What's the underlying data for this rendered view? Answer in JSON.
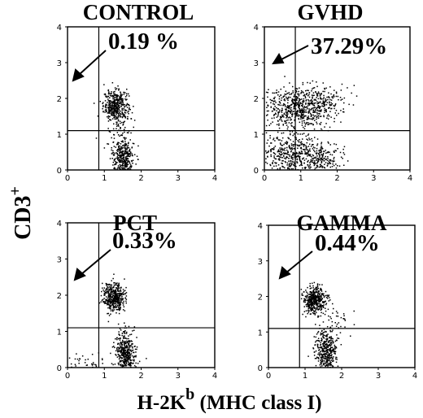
{
  "figure": {
    "ylabel": "CD3",
    "ylabel_sup": "+",
    "xlabel_main": "H-2K",
    "xlabel_sup": "b",
    "xlabel_rest": " (MHC class I)"
  },
  "chart_data": [
    {
      "type": "scatter",
      "title": "CONTROL",
      "annotation": "0.19 %",
      "xlim": [
        0,
        4
      ],
      "ylim": [
        0,
        4
      ],
      "xticks": [
        "0",
        "1",
        "2",
        "3",
        "4"
      ],
      "yticks": [
        "0",
        "1",
        "2",
        "3",
        "4"
      ],
      "gates": {
        "x": 0.85,
        "y": 1.1
      },
      "clusters": [
        {
          "cx": 1.3,
          "cy": 1.8,
          "sx": 0.17,
          "sy": 0.22,
          "n": 420
        },
        {
          "cx": 1.5,
          "cy": 0.35,
          "sx": 0.15,
          "sy": 0.3,
          "n": 360
        },
        {
          "cx": 1.4,
          "cy": 1.0,
          "sx": 0.2,
          "sy": 0.3,
          "n": 40
        }
      ]
    },
    {
      "type": "scatter",
      "title": "GVHD",
      "annotation": "37.29%",
      "xlim": [
        0,
        4
      ],
      "ylim": [
        0,
        4
      ],
      "xticks": [
        "0",
        "1",
        "2",
        "3",
        "4"
      ],
      "yticks": [
        "0",
        "1",
        "2",
        "3",
        "4"
      ],
      "gates": {
        "x": 0.85,
        "y": 1.1
      },
      "clusters": [
        {
          "cx": 0.75,
          "cy": 1.75,
          "sx": 0.45,
          "sy": 0.28,
          "n": 520
        },
        {
          "cx": 1.5,
          "cy": 1.85,
          "sx": 0.35,
          "sy": 0.25,
          "n": 220
        },
        {
          "cx": 0.8,
          "cy": 0.45,
          "sx": 0.5,
          "sy": 0.3,
          "n": 460
        },
        {
          "cx": 1.5,
          "cy": 0.3,
          "sx": 0.3,
          "sy": 0.2,
          "n": 160
        }
      ]
    },
    {
      "type": "scatter",
      "title": "PCT",
      "annotation": "0.33%",
      "xlim": [
        0,
        4
      ],
      "ylim": [
        0,
        4
      ],
      "xticks": [
        "0",
        "1",
        "2",
        "3",
        "4"
      ],
      "yticks": [
        "0",
        "1",
        "2",
        "3",
        "4"
      ],
      "gates": {
        "x": 0.85,
        "y": 1.1
      },
      "clusters": [
        {
          "cx": 1.25,
          "cy": 1.95,
          "sx": 0.15,
          "sy": 0.2,
          "n": 440
        },
        {
          "cx": 1.55,
          "cy": 0.4,
          "sx": 0.14,
          "sy": 0.32,
          "n": 420
        },
        {
          "cx": 0.5,
          "cy": 0.2,
          "sx": 0.3,
          "sy": 0.12,
          "n": 40
        }
      ]
    },
    {
      "type": "scatter",
      "title": "GAMMA",
      "annotation": "0.44%",
      "xlim": [
        0,
        4
      ],
      "ylim": [
        0,
        4
      ],
      "xticks": [
        "0",
        "1",
        "2",
        "3",
        "4"
      ],
      "yticks": [
        "0",
        "1",
        "2",
        "3",
        "4"
      ],
      "gates": {
        "x": 0.85,
        "y": 1.1
      },
      "clusters": [
        {
          "cx": 1.25,
          "cy": 1.9,
          "sx": 0.15,
          "sy": 0.2,
          "n": 420
        },
        {
          "cx": 1.55,
          "cy": 0.45,
          "sx": 0.15,
          "sy": 0.32,
          "n": 400
        },
        {
          "cx": 1.9,
          "cy": 1.3,
          "sx": 0.2,
          "sy": 0.25,
          "n": 30
        }
      ]
    }
  ]
}
